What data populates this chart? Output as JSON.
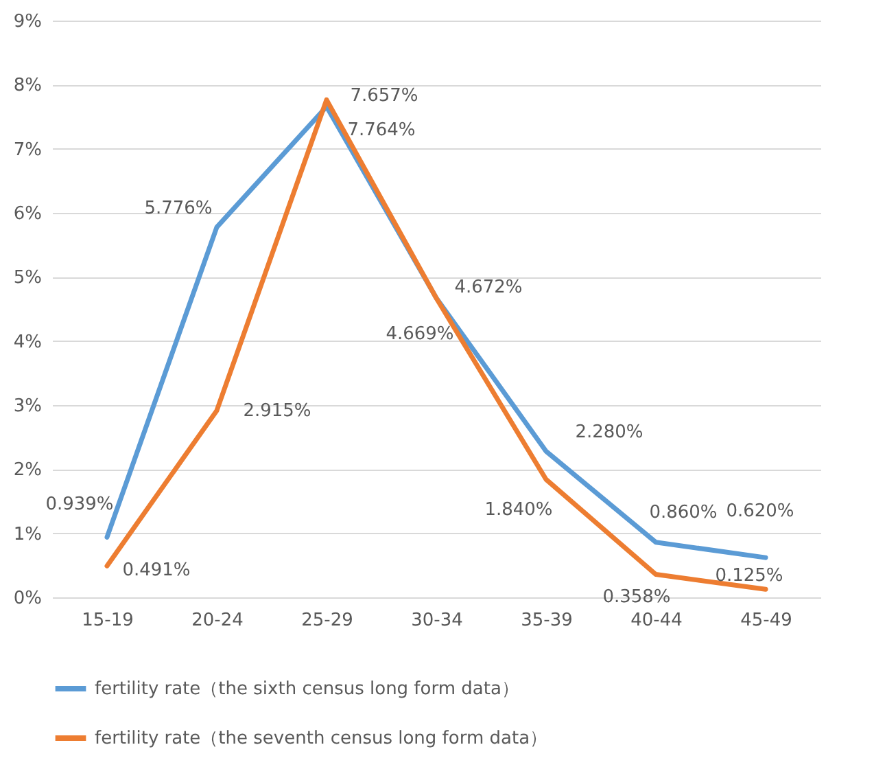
{
  "chart_data": {
    "type": "line",
    "categories": [
      "15-19",
      "20-24",
      "25-29",
      "30-34",
      "35-39",
      "40-44",
      "45-49"
    ],
    "series": [
      {
        "name": "fertility rate（the sixth census long form data）",
        "color": "#5b9bd5",
        "values": [
          0.939,
          5.776,
          7.657,
          4.672,
          2.28,
          0.86,
          0.62
        ],
        "value_labels": [
          "0.939%",
          "5.776%",
          "7.657%",
          "4.672%",
          "2.280%",
          "0.860%",
          "0.620%"
        ]
      },
      {
        "name": "fertility rate（the seventh census long form data）",
        "color": "#ed7d31",
        "values": [
          0.491,
          2.915,
          7.764,
          4.669,
          1.84,
          0.358,
          0.125
        ],
        "value_labels": [
          "0.491%",
          "2.915%",
          "7.764%",
          "4.669%",
          "1.840%",
          "0.358%",
          "0.125%"
        ]
      }
    ],
    "ylim": [
      0,
      9
    ],
    "yticks": [
      {
        "value": 0,
        "label": "0%"
      },
      {
        "value": 1,
        "label": "1%"
      },
      {
        "value": 2,
        "label": "2%"
      },
      {
        "value": 3,
        "label": "3%"
      },
      {
        "value": 4,
        "label": "4%"
      },
      {
        "value": 5,
        "label": "5%"
      },
      {
        "value": 6,
        "label": "6%"
      },
      {
        "value": 7,
        "label": "7%"
      },
      {
        "value": 8,
        "label": "8%"
      },
      {
        "value": 9,
        "label": "9%"
      }
    ],
    "grid": "y",
    "legend": "bottom",
    "line_style": "solid",
    "marker": "none"
  }
}
